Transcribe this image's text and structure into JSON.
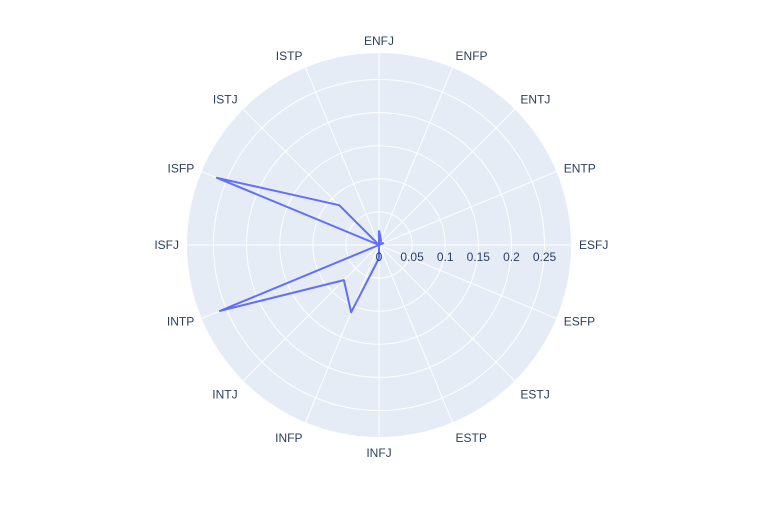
{
  "chart_data": {
    "type": "radar",
    "title": "",
    "categories": [
      "ENFJ",
      "ENFP",
      "ENTJ",
      "ENTP",
      "ESFJ",
      "ESFP",
      "ESTJ",
      "ESTP",
      "INFJ",
      "INFP",
      "INTJ",
      "INTP",
      "ISFJ",
      "ISFP",
      "ISTJ",
      "ISTP"
    ],
    "series": [
      {
        "values": [
          0.022,
          0.008,
          0.003,
          0.007,
          0.0,
          0.0,
          0.0,
          0.0,
          0.02,
          0.11,
          0.075,
          0.26,
          0.0,
          0.265,
          0.085,
          0.0
        ]
      }
    ],
    "radial_range": [
      0,
      0.29
    ],
    "radial_ticks": [
      "0",
      "0.05",
      "0.1",
      "0.15",
      "0.2",
      "0.25"
    ],
    "radial_tick_values": [
      0,
      0.05,
      0.1,
      0.15,
      0.2,
      0.25
    ],
    "grid": true,
    "colors": {
      "background": "#e5ecf6",
      "grid": "#ffffff",
      "line": "#636efa",
      "text": "#2a3f5f"
    }
  }
}
